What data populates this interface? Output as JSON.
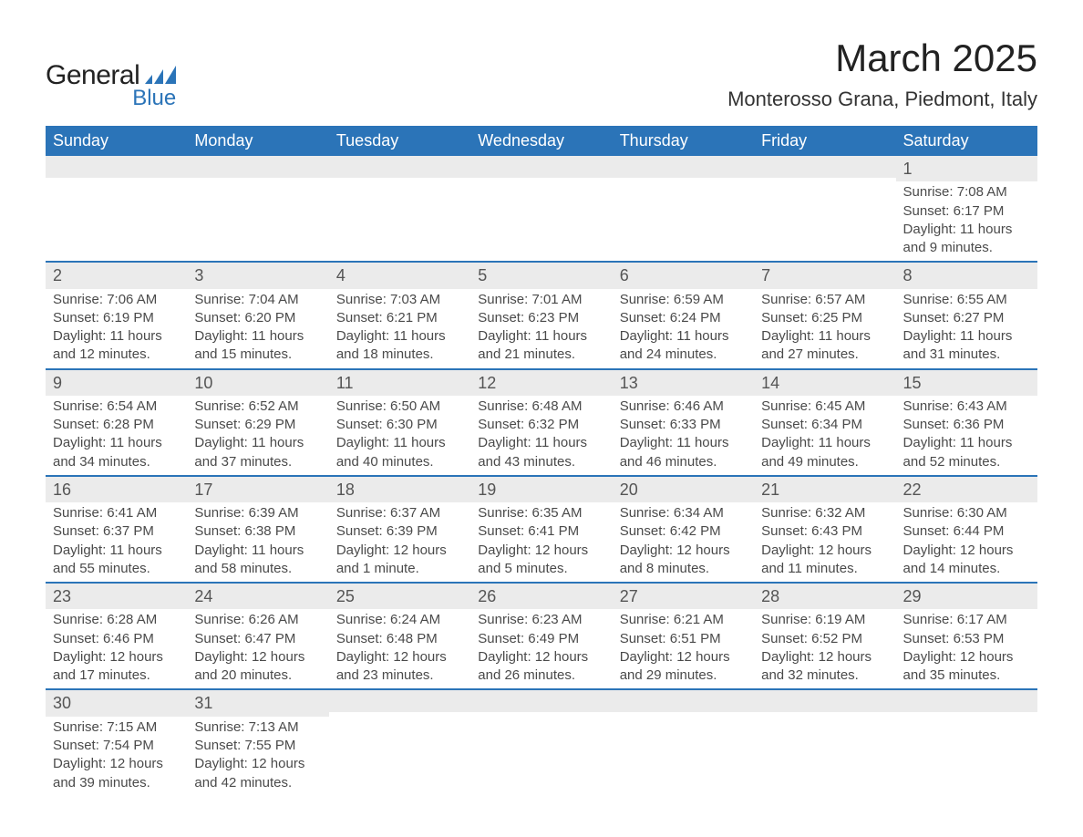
{
  "colors": {
    "header_bg": "#2b74b8",
    "header_text": "#ffffff",
    "daynum_bg": "#ebebeb",
    "row_border": "#2b74b8",
    "body_text": "#4a4a4a",
    "title_text": "#222222",
    "logo_blue": "#2b74b8",
    "page_bg": "#ffffff"
  },
  "typography": {
    "month_title_fontsize": 42,
    "location_fontsize": 22,
    "day_header_fontsize": 18,
    "daynum_fontsize": 18,
    "body_fontsize": 15
  },
  "logo": {
    "line1": "General",
    "line2": "Blue"
  },
  "title": "March 2025",
  "location": "Monterosso Grana, Piedmont, Italy",
  "day_headers": [
    "Sunday",
    "Monday",
    "Tuesday",
    "Wednesday",
    "Thursday",
    "Friday",
    "Saturday"
  ],
  "weeks": [
    [
      null,
      null,
      null,
      null,
      null,
      null,
      {
        "n": "1",
        "sunrise": "7:08 AM",
        "sunset": "6:17 PM",
        "daylight": "11 hours and 9 minutes."
      }
    ],
    [
      {
        "n": "2",
        "sunrise": "7:06 AM",
        "sunset": "6:19 PM",
        "daylight": "11 hours and 12 minutes."
      },
      {
        "n": "3",
        "sunrise": "7:04 AM",
        "sunset": "6:20 PM",
        "daylight": "11 hours and 15 minutes."
      },
      {
        "n": "4",
        "sunrise": "7:03 AM",
        "sunset": "6:21 PM",
        "daylight": "11 hours and 18 minutes."
      },
      {
        "n": "5",
        "sunrise": "7:01 AM",
        "sunset": "6:23 PM",
        "daylight": "11 hours and 21 minutes."
      },
      {
        "n": "6",
        "sunrise": "6:59 AM",
        "sunset": "6:24 PM",
        "daylight": "11 hours and 24 minutes."
      },
      {
        "n": "7",
        "sunrise": "6:57 AM",
        "sunset": "6:25 PM",
        "daylight": "11 hours and 27 minutes."
      },
      {
        "n": "8",
        "sunrise": "6:55 AM",
        "sunset": "6:27 PM",
        "daylight": "11 hours and 31 minutes."
      }
    ],
    [
      {
        "n": "9",
        "sunrise": "6:54 AM",
        "sunset": "6:28 PM",
        "daylight": "11 hours and 34 minutes."
      },
      {
        "n": "10",
        "sunrise": "6:52 AM",
        "sunset": "6:29 PM",
        "daylight": "11 hours and 37 minutes."
      },
      {
        "n": "11",
        "sunrise": "6:50 AM",
        "sunset": "6:30 PM",
        "daylight": "11 hours and 40 minutes."
      },
      {
        "n": "12",
        "sunrise": "6:48 AM",
        "sunset": "6:32 PM",
        "daylight": "11 hours and 43 minutes."
      },
      {
        "n": "13",
        "sunrise": "6:46 AM",
        "sunset": "6:33 PM",
        "daylight": "11 hours and 46 minutes."
      },
      {
        "n": "14",
        "sunrise": "6:45 AM",
        "sunset": "6:34 PM",
        "daylight": "11 hours and 49 minutes."
      },
      {
        "n": "15",
        "sunrise": "6:43 AM",
        "sunset": "6:36 PM",
        "daylight": "11 hours and 52 minutes."
      }
    ],
    [
      {
        "n": "16",
        "sunrise": "6:41 AM",
        "sunset": "6:37 PM",
        "daylight": "11 hours and 55 minutes."
      },
      {
        "n": "17",
        "sunrise": "6:39 AM",
        "sunset": "6:38 PM",
        "daylight": "11 hours and 58 minutes."
      },
      {
        "n": "18",
        "sunrise": "6:37 AM",
        "sunset": "6:39 PM",
        "daylight": "12 hours and 1 minute."
      },
      {
        "n": "19",
        "sunrise": "6:35 AM",
        "sunset": "6:41 PM",
        "daylight": "12 hours and 5 minutes."
      },
      {
        "n": "20",
        "sunrise": "6:34 AM",
        "sunset": "6:42 PM",
        "daylight": "12 hours and 8 minutes."
      },
      {
        "n": "21",
        "sunrise": "6:32 AM",
        "sunset": "6:43 PM",
        "daylight": "12 hours and 11 minutes."
      },
      {
        "n": "22",
        "sunrise": "6:30 AM",
        "sunset": "6:44 PM",
        "daylight": "12 hours and 14 minutes."
      }
    ],
    [
      {
        "n": "23",
        "sunrise": "6:28 AM",
        "sunset": "6:46 PM",
        "daylight": "12 hours and 17 minutes."
      },
      {
        "n": "24",
        "sunrise": "6:26 AM",
        "sunset": "6:47 PM",
        "daylight": "12 hours and 20 minutes."
      },
      {
        "n": "25",
        "sunrise": "6:24 AM",
        "sunset": "6:48 PM",
        "daylight": "12 hours and 23 minutes."
      },
      {
        "n": "26",
        "sunrise": "6:23 AM",
        "sunset": "6:49 PM",
        "daylight": "12 hours and 26 minutes."
      },
      {
        "n": "27",
        "sunrise": "6:21 AM",
        "sunset": "6:51 PM",
        "daylight": "12 hours and 29 minutes."
      },
      {
        "n": "28",
        "sunrise": "6:19 AM",
        "sunset": "6:52 PM",
        "daylight": "12 hours and 32 minutes."
      },
      {
        "n": "29",
        "sunrise": "6:17 AM",
        "sunset": "6:53 PM",
        "daylight": "12 hours and 35 minutes."
      }
    ],
    [
      {
        "n": "30",
        "sunrise": "7:15 AM",
        "sunset": "7:54 PM",
        "daylight": "12 hours and 39 minutes."
      },
      {
        "n": "31",
        "sunrise": "7:13 AM",
        "sunset": "7:55 PM",
        "daylight": "12 hours and 42 minutes."
      },
      null,
      null,
      null,
      null,
      null
    ]
  ],
  "labels": {
    "sunrise_prefix": "Sunrise: ",
    "sunset_prefix": "Sunset: ",
    "daylight_prefix": "Daylight: "
  }
}
